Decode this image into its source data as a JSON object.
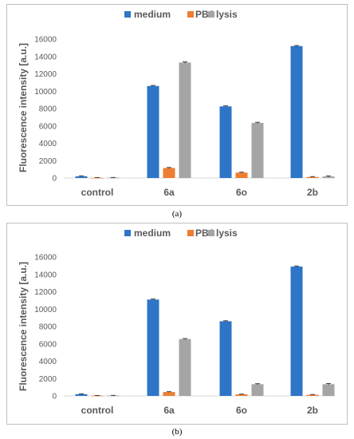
{
  "chart_data": [
    {
      "type": "bar",
      "panel": "(a)",
      "ylabel": "Fluorescence intensity [a.u.]",
      "ylim": [
        0,
        16000
      ],
      "yticks": [
        "0",
        "2000",
        "4000",
        "6000",
        "8000",
        "10000",
        "12000",
        "14000",
        "16000"
      ],
      "categories": [
        "control",
        "6a",
        "6o",
        "2b"
      ],
      "legend_position": "top",
      "grid": false,
      "series": [
        {
          "name": "medium",
          "color": "#2e75c8",
          "values": [
            200,
            10600,
            8250,
            15200
          ],
          "errors": [
            50,
            60,
            60,
            60
          ]
        },
        {
          "name": "PBS",
          "color": "#ed7d31",
          "values": [
            30,
            1150,
            620,
            120
          ],
          "errors": [
            15,
            60,
            50,
            40
          ]
        },
        {
          "name": "lysis",
          "color": "#a5a5a5",
          "values": [
            40,
            13300,
            6350,
            180
          ],
          "errors": [
            20,
            80,
            70,
            60
          ]
        }
      ]
    },
    {
      "type": "bar",
      "panel": "(b)",
      "ylabel": "Fluorescence intensity [a.u.]",
      "ylim": [
        0,
        16000
      ],
      "yticks": [
        "0",
        "2000",
        "4000",
        "6000",
        "8000",
        "10000",
        "12000",
        "14000",
        "16000"
      ],
      "categories": [
        "control",
        "6a",
        "6o",
        "2b"
      ],
      "legend_position": "top",
      "grid": false,
      "series": [
        {
          "name": "medium",
          "color": "#2e75c8",
          "values": [
            200,
            11100,
            8600,
            14900
          ],
          "errors": [
            40,
            60,
            60,
            60
          ]
        },
        {
          "name": "PBS",
          "color": "#ed7d31",
          "values": [
            30,
            450,
            180,
            130
          ],
          "errors": [
            15,
            40,
            30,
            30
          ]
        },
        {
          "name": "lysis",
          "color": "#a5a5a5",
          "values": [
            40,
            6550,
            1350,
            1350
          ],
          "errors": [
            20,
            60,
            60,
            80
          ]
        }
      ]
    }
  ],
  "captions": {
    "a": "(a)",
    "b": "(b)"
  }
}
